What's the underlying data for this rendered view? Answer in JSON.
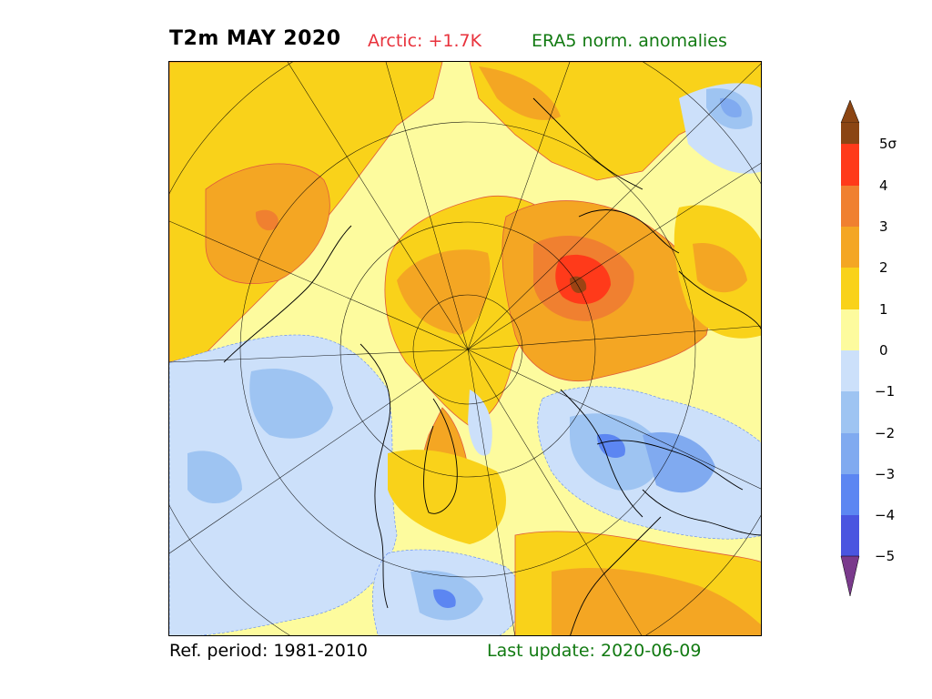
{
  "header": {
    "title": "T2m MAY 2020",
    "arctic_label": "Arctic: +1.7K",
    "dataset_label": "ERA5 norm. anomalies"
  },
  "footer": {
    "ref_period": "Ref. period: 1981-2010",
    "last_update": "Last update: 2020-06-09"
  },
  "colorbar": {
    "labels": [
      "5σ",
      "4",
      "3",
      "2",
      "1",
      "0",
      "−1",
      "−2",
      "−3",
      "−4",
      "−5"
    ],
    "colors": {
      "above5": "#8b4513",
      "4to5": "#ff3a1a",
      "3to4": "#f08030",
      "2to3": "#f4a623",
      "1to2": "#f9d21a",
      "0to1": "#fdfb9e",
      "m1to0": "#cce0fa",
      "m2tom1": "#9ec4f2",
      "m3tom2": "#80aaf0",
      "m4tom3": "#5c86f2",
      "m5tom4": "#4a55e0",
      "belowm5": "#7a3a8c"
    }
  }
}
